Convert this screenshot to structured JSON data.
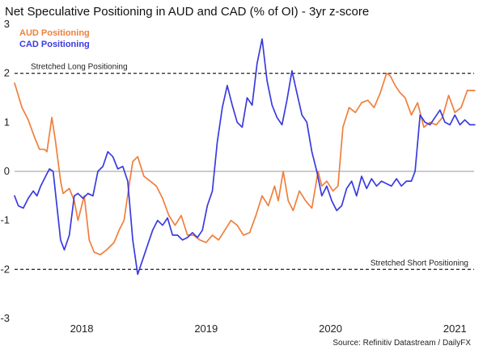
{
  "chart_data": {
    "type": "line",
    "title": "Net Speculative Positioning in AUD and CAD (% of OI) - 3yr z-score",
    "source": "Source: Refinitiv Datastream / DailyFX",
    "ylim": [
      -3,
      3
    ],
    "yticks": [
      3,
      2,
      1,
      0,
      -1,
      -2,
      -3
    ],
    "xlim": [
      2017.46,
      2021.18
    ],
    "xticks": [
      {
        "label": "2018",
        "x": 2018.0
      },
      {
        "label": "2019",
        "x": 2019.0
      },
      {
        "label": "2020",
        "x": 2020.0
      },
      {
        "label": "2021",
        "x": 2021.0
      }
    ],
    "grid": false,
    "legend_position": "top-left",
    "reference_lines": [
      {
        "y": 2,
        "label": "Stretched Long Positioning",
        "style": "dashed"
      },
      {
        "y": 0,
        "label": "",
        "style": "solid"
      },
      {
        "y": -2,
        "label": "Stretched Short Positioning",
        "style": "dashed"
      }
    ],
    "series": [
      {
        "name": "AUD Positioning",
        "color": "#f07f3c",
        "points": [
          [
            2017.46,
            1.8
          ],
          [
            2017.52,
            1.3
          ],
          [
            2017.57,
            1.05
          ],
          [
            2017.62,
            0.7
          ],
          [
            2017.66,
            0.45
          ],
          [
            2017.7,
            0.45
          ],
          [
            2017.72,
            0.4
          ],
          [
            2017.76,
            1.1
          ],
          [
            2017.79,
            0.6
          ],
          [
            2017.83,
            -0.2
          ],
          [
            2017.85,
            -0.45
          ],
          [
            2017.9,
            -0.35
          ],
          [
            2017.94,
            -0.6
          ],
          [
            2017.97,
            -1.0
          ],
          [
            2018.02,
            -0.5
          ],
          [
            2018.06,
            -1.4
          ],
          [
            2018.1,
            -1.65
          ],
          [
            2018.15,
            -1.7
          ],
          [
            2018.2,
            -1.6
          ],
          [
            2018.26,
            -1.45
          ],
          [
            2018.3,
            -1.2
          ],
          [
            2018.34,
            -1.0
          ],
          [
            2018.38,
            -0.3
          ],
          [
            2018.41,
            0.2
          ],
          [
            2018.45,
            0.3
          ],
          [
            2018.5,
            -0.1
          ],
          [
            2018.55,
            -0.2
          ],
          [
            2018.6,
            -0.3
          ],
          [
            2018.65,
            -0.55
          ],
          [
            2018.7,
            -0.9
          ],
          [
            2018.75,
            -1.1
          ],
          [
            2018.8,
            -0.9
          ],
          [
            2018.85,
            -1.3
          ],
          [
            2018.9,
            -1.3
          ],
          [
            2018.95,
            -1.4
          ],
          [
            2019.0,
            -1.45
          ],
          [
            2019.05,
            -1.3
          ],
          [
            2019.1,
            -1.4
          ],
          [
            2019.15,
            -1.2
          ],
          [
            2019.2,
            -1.0
          ],
          [
            2019.25,
            -1.1
          ],
          [
            2019.3,
            -1.3
          ],
          [
            2019.35,
            -1.25
          ],
          [
            2019.4,
            -0.9
          ],
          [
            2019.45,
            -0.5
          ],
          [
            2019.5,
            -0.7
          ],
          [
            2019.55,
            -0.3
          ],
          [
            2019.58,
            -0.6
          ],
          [
            2019.62,
            0.0
          ],
          [
            2019.66,
            -0.6
          ],
          [
            2019.7,
            -0.8
          ],
          [
            2019.75,
            -0.4
          ],
          [
            2019.8,
            -0.6
          ],
          [
            2019.85,
            -0.75
          ],
          [
            2019.9,
            0.0
          ],
          [
            2019.93,
            -0.3
          ],
          [
            2019.97,
            -0.2
          ],
          [
            2020.02,
            -0.4
          ],
          [
            2020.06,
            -0.3
          ],
          [
            2020.1,
            0.9
          ],
          [
            2020.15,
            1.3
          ],
          [
            2020.2,
            1.2
          ],
          [
            2020.25,
            1.4
          ],
          [
            2020.3,
            1.45
          ],
          [
            2020.35,
            1.3
          ],
          [
            2020.4,
            1.6
          ],
          [
            2020.45,
            2.0
          ],
          [
            2020.48,
            1.95
          ],
          [
            2020.52,
            1.75
          ],
          [
            2020.56,
            1.6
          ],
          [
            2020.6,
            1.5
          ],
          [
            2020.65,
            1.15
          ],
          [
            2020.7,
            1.4
          ],
          [
            2020.75,
            0.9
          ],
          [
            2020.8,
            1.0
          ],
          [
            2020.85,
            0.95
          ],
          [
            2020.9,
            1.1
          ],
          [
            2020.95,
            1.55
          ],
          [
            2021.0,
            1.2
          ],
          [
            2021.05,
            1.3
          ],
          [
            2021.1,
            1.65
          ],
          [
            2021.16,
            1.65
          ]
        ]
      },
      {
        "name": "CAD Positioning",
        "color": "#3a3ae0",
        "points": [
          [
            2017.46,
            -0.5
          ],
          [
            2017.49,
            -0.7
          ],
          [
            2017.53,
            -0.75
          ],
          [
            2017.57,
            -0.55
          ],
          [
            2017.61,
            -0.4
          ],
          [
            2017.64,
            -0.5
          ],
          [
            2017.67,
            -0.3
          ],
          [
            2017.71,
            -0.1
          ],
          [
            2017.74,
            0.05
          ],
          [
            2017.77,
            0.0
          ],
          [
            2017.8,
            -0.7
          ],
          [
            2017.83,
            -1.4
          ],
          [
            2017.86,
            -1.6
          ],
          [
            2017.9,
            -1.3
          ],
          [
            2017.94,
            -0.5
          ],
          [
            2017.97,
            -0.45
          ],
          [
            2018.01,
            -0.55
          ],
          [
            2018.05,
            -0.45
          ],
          [
            2018.09,
            -0.5
          ],
          [
            2018.13,
            0.0
          ],
          [
            2018.17,
            0.1
          ],
          [
            2018.21,
            0.4
          ],
          [
            2018.25,
            0.3
          ],
          [
            2018.29,
            0.05
          ],
          [
            2018.33,
            0.1
          ],
          [
            2018.37,
            -0.2
          ],
          [
            2018.41,
            -1.4
          ],
          [
            2018.45,
            -2.1
          ],
          [
            2018.49,
            -1.8
          ],
          [
            2018.53,
            -1.5
          ],
          [
            2018.57,
            -1.2
          ],
          [
            2018.61,
            -1.0
          ],
          [
            2018.65,
            -1.1
          ],
          [
            2018.69,
            -0.95
          ],
          [
            2018.73,
            -1.3
          ],
          [
            2018.77,
            -1.3
          ],
          [
            2018.81,
            -1.4
          ],
          [
            2018.85,
            -1.35
          ],
          [
            2018.89,
            -1.25
          ],
          [
            2018.93,
            -1.35
          ],
          [
            2018.97,
            -1.2
          ],
          [
            2019.01,
            -0.7
          ],
          [
            2019.05,
            -0.4
          ],
          [
            2019.09,
            0.6
          ],
          [
            2019.13,
            1.3
          ],
          [
            2019.17,
            1.75
          ],
          [
            2019.21,
            1.35
          ],
          [
            2019.25,
            1.0
          ],
          [
            2019.29,
            0.9
          ],
          [
            2019.33,
            1.5
          ],
          [
            2019.37,
            1.35
          ],
          [
            2019.41,
            2.2
          ],
          [
            2019.45,
            2.7
          ],
          [
            2019.49,
            1.85
          ],
          [
            2019.53,
            1.35
          ],
          [
            2019.57,
            1.1
          ],
          [
            2019.61,
            0.95
          ],
          [
            2019.65,
            1.45
          ],
          [
            2019.69,
            2.05
          ],
          [
            2019.73,
            1.6
          ],
          [
            2019.77,
            1.15
          ],
          [
            2019.81,
            1.0
          ],
          [
            2019.85,
            0.4
          ],
          [
            2019.89,
            0.0
          ],
          [
            2019.93,
            -0.5
          ],
          [
            2019.97,
            -0.3
          ],
          [
            2020.01,
            -0.6
          ],
          [
            2020.05,
            -0.8
          ],
          [
            2020.09,
            -0.7
          ],
          [
            2020.13,
            -0.35
          ],
          [
            2020.17,
            -0.2
          ],
          [
            2020.21,
            -0.5
          ],
          [
            2020.25,
            -0.1
          ],
          [
            2020.29,
            -0.35
          ],
          [
            2020.33,
            -0.15
          ],
          [
            2020.37,
            -0.3
          ],
          [
            2020.41,
            -0.2
          ],
          [
            2020.45,
            -0.25
          ],
          [
            2020.49,
            -0.3
          ],
          [
            2020.53,
            -0.15
          ],
          [
            2020.57,
            -0.3
          ],
          [
            2020.61,
            -0.2
          ],
          [
            2020.65,
            -0.2
          ],
          [
            2020.68,
            0.0
          ],
          [
            2020.72,
            1.15
          ],
          [
            2020.76,
            1.0
          ],
          [
            2020.8,
            0.95
          ],
          [
            2020.84,
            1.1
          ],
          [
            2020.88,
            1.25
          ],
          [
            2020.92,
            1.0
          ],
          [
            2020.96,
            0.95
          ],
          [
            2021.0,
            1.15
          ],
          [
            2021.04,
            0.95
          ],
          [
            2021.08,
            1.05
          ],
          [
            2021.12,
            0.95
          ],
          [
            2021.16,
            0.95
          ]
        ]
      }
    ]
  }
}
